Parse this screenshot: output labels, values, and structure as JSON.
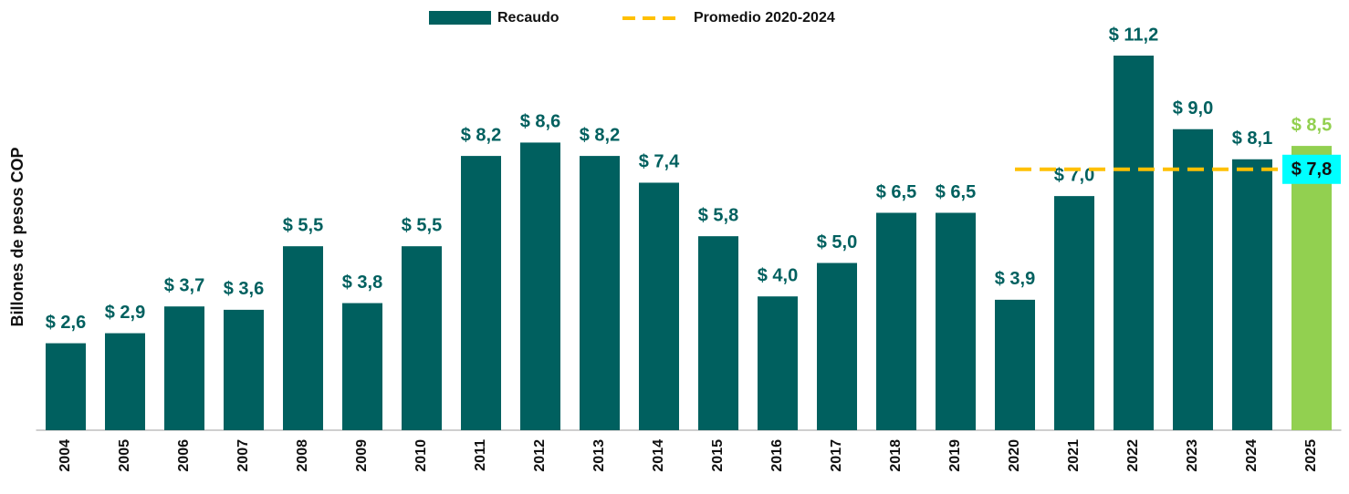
{
  "chart_data": {
    "type": "bar",
    "y_label": "Billones de pesos COP",
    "categories": [
      "2004",
      "2005",
      "2006",
      "2007",
      "2008",
      "2009",
      "2010",
      "2011",
      "2012",
      "2013",
      "2014",
      "2015",
      "2016",
      "2017",
      "2018",
      "2019",
      "2020",
      "2021",
      "2022",
      "2023",
      "2024",
      "2025"
    ],
    "series": [
      {
        "name": "Recaudo",
        "color": "#00605f",
        "values": [
          2.6,
          2.9,
          3.7,
          3.6,
          5.5,
          3.8,
          5.5,
          8.2,
          8.6,
          8.2,
          7.4,
          5.8,
          4.0,
          5.0,
          6.5,
          6.5,
          3.9,
          7.0,
          11.2,
          9.0,
          8.1,
          8.5
        ],
        "value_labels": [
          "$ 2,6",
          "$ 2,9",
          "$ 3,7",
          "$ 3,6",
          "$ 5,5",
          "$ 3,8",
          "$ 5,5",
          "$ 8,2",
          "$ 8,6",
          "$ 8,2",
          "$ 7,4",
          "$ 5,8",
          "$ 4,0",
          "$ 5,0",
          "$ 6,5",
          "$ 6,5",
          "$ 3,9",
          "$ 7,0",
          "$ 11,2",
          "$ 9,0",
          "$ 8,1",
          "$ 8,5"
        ],
        "colors": [
          "#00605f",
          "#00605f",
          "#00605f",
          "#00605f",
          "#00605f",
          "#00605f",
          "#00605f",
          "#00605f",
          "#00605f",
          "#00605f",
          "#00605f",
          "#00605f",
          "#00605f",
          "#00605f",
          "#00605f",
          "#00605f",
          "#00605f",
          "#00605f",
          "#00605f",
          "#00605f",
          "#00605f",
          "#92d050"
        ]
      },
      {
        "name": "Promedio 2020-2024",
        "type": "line",
        "color": "#ffc000",
        "dashed": true,
        "value": 7.8,
        "value_label": "$ 7,8",
        "label_color": "#00ffff",
        "from": "2020",
        "to": "2024"
      }
    ],
    "ylim": [
      0,
      11.5
    ]
  }
}
